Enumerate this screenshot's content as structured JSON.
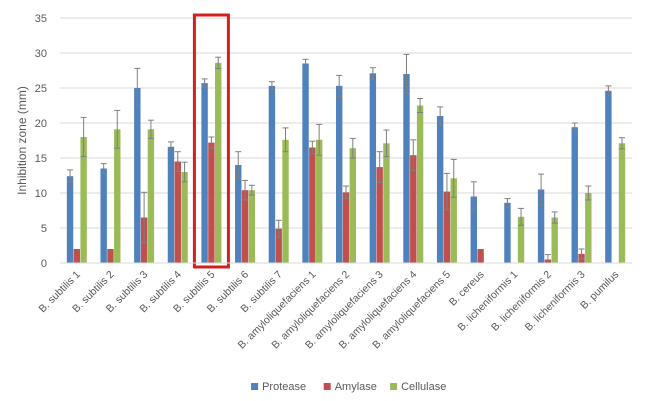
{
  "chart_data": {
    "type": "bar",
    "title": "",
    "xlabel": "",
    "ylabel": "Inhibition zone (mm)",
    "ylim": [
      0,
      35
    ],
    "yticks": [
      0,
      5,
      10,
      15,
      20,
      25,
      30,
      35
    ],
    "grid": true,
    "legend_position": "bottom",
    "highlight": {
      "category": "B. subtilis 5",
      "color": "#d2201f"
    },
    "categories": [
      "B. subtilis 1",
      "B. subtilis 2",
      "B. subtilis 3",
      "B. subtilis 4",
      "B. subtilis 5",
      "B. subtilis 6",
      "B. subtilis 7",
      "B. amyloliquefaciens 1",
      "B. amyloliquefaciens 2",
      "B. amyloliquefaciens 3",
      "B. amyloliquefaciens 4",
      "B. amyloliquefaciens 5",
      "B. cereus",
      "B. licheniformis 1",
      "B. licheniformis 2",
      "B. licheniformis 3",
      "B. pumilus"
    ],
    "series": [
      {
        "name": "Protease",
        "color": "#4f81bd",
        "values": [
          12.4,
          13.5,
          25.0,
          16.6,
          25.7,
          14.0,
          25.3,
          28.5,
          25.3,
          27.1,
          27.0,
          21.0,
          9.5,
          8.6,
          10.5,
          19.4,
          24.6
        ],
        "errors": [
          0.9,
          0.7,
          2.8,
          0.7,
          0.6,
          1.9,
          0.6,
          0.6,
          1.5,
          0.8,
          2.8,
          1.3,
          2.1,
          0.6,
          2.2,
          0.6,
          0.7
        ]
      },
      {
        "name": "Amylase",
        "color": "#c0504d",
        "values": [
          2.0,
          2.0,
          6.5,
          14.5,
          17.2,
          10.4,
          4.9,
          16.5,
          10.1,
          13.7,
          15.4,
          10.2,
          2.0,
          0,
          0.5,
          1.3,
          0
        ],
        "errors": [
          0,
          0,
          3.6,
          1.4,
          0.8,
          1.4,
          1.2,
          0.9,
          0.9,
          2.2,
          2.2,
          2.6,
          0,
          0,
          0.7,
          0.7,
          0
        ]
      },
      {
        "name": "Cellulase",
        "color": "#9bbb59",
        "values": [
          18.0,
          19.1,
          19.1,
          13.0,
          28.6,
          10.4,
          17.6,
          17.6,
          16.4,
          17.1,
          22.5,
          12.1,
          0,
          6.6,
          6.5,
          10.0,
          17.1
        ],
        "errors": [
          2.8,
          2.7,
          1.3,
          1.4,
          0.8,
          0.7,
          1.7,
          2.2,
          1.4,
          1.9,
          1.0,
          2.7,
          0,
          1.2,
          0.8,
          1.0,
          0.8
        ]
      }
    ]
  }
}
